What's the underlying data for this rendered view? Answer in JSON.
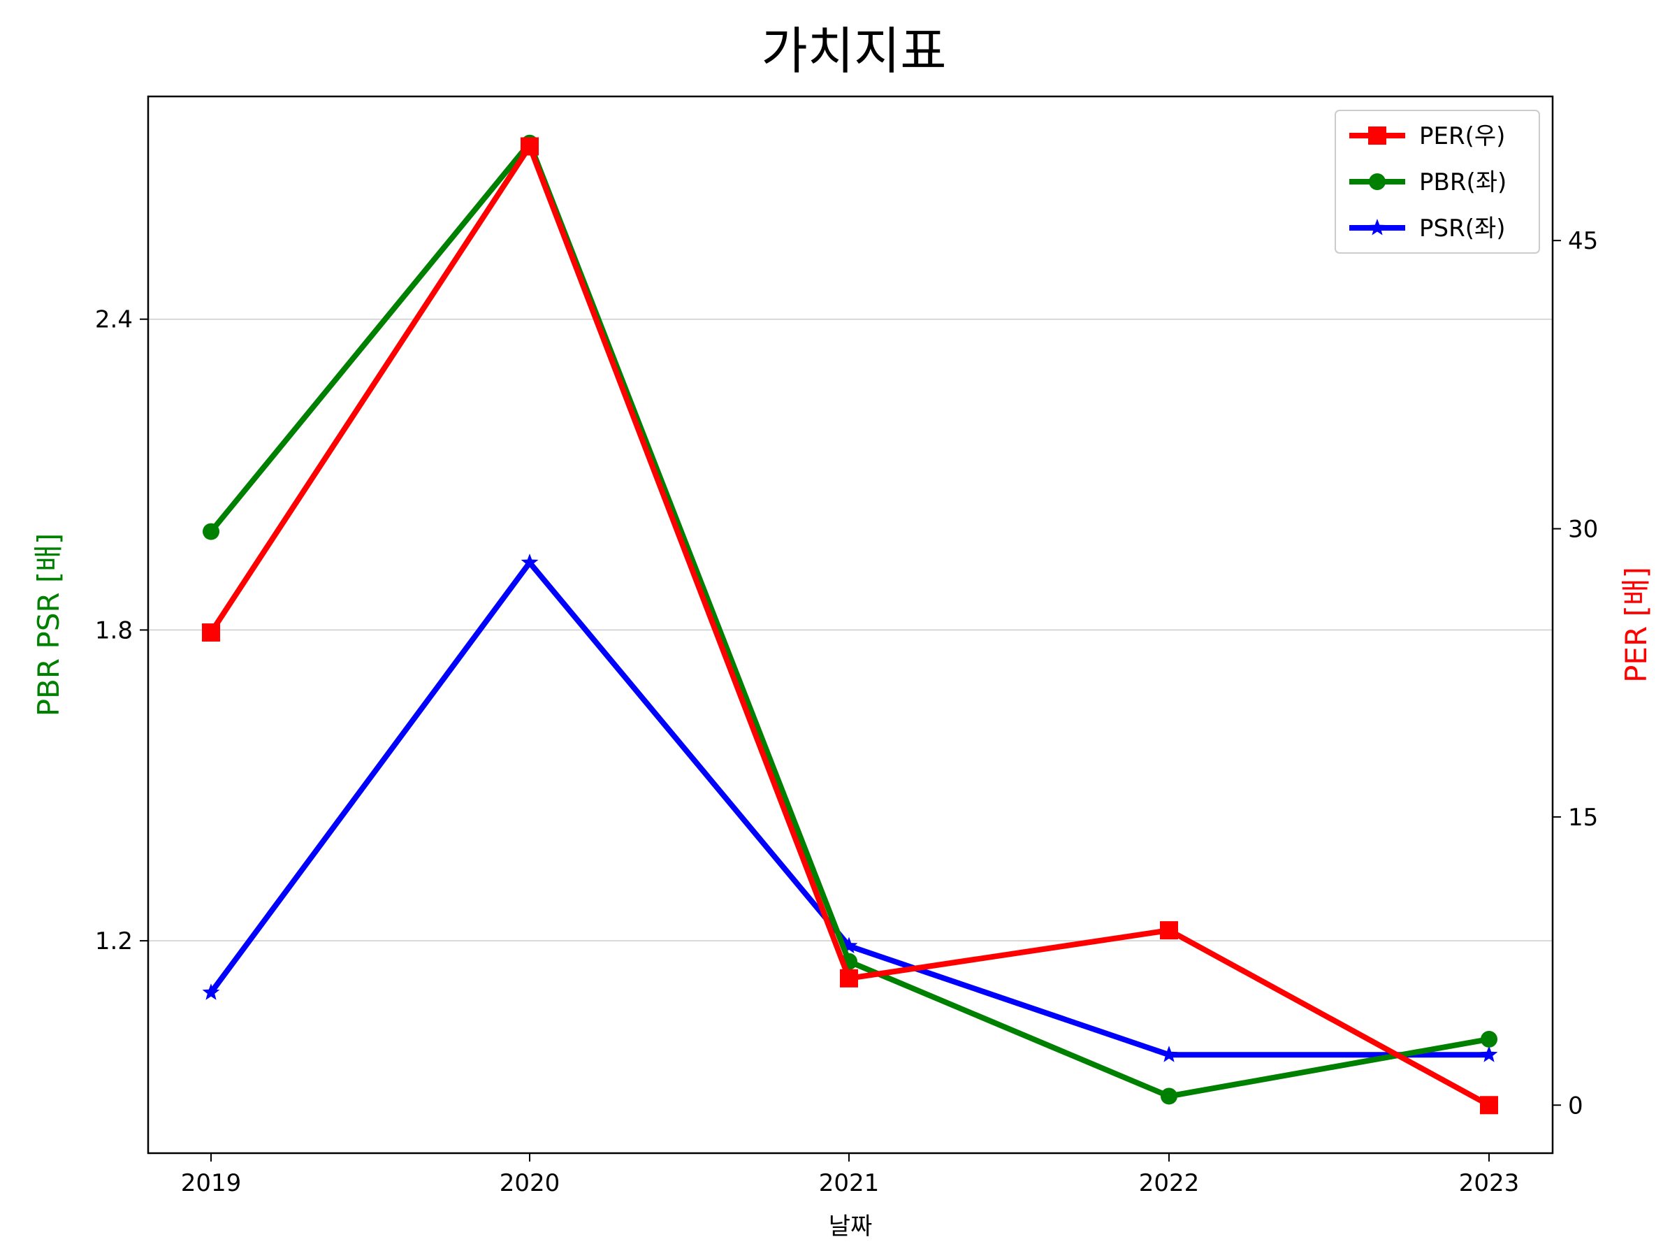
{
  "chart_data": {
    "type": "line",
    "title": "가치지표",
    "xlabel": "날짜",
    "ylabel_left": "PBR PSR [배]",
    "ylabel_right": "PER [배]",
    "x": [
      "2019",
      "2020",
      "2021",
      "2022",
      "2023"
    ],
    "y_left_lim": [
      0.79,
      2.83
    ],
    "y_left_ticks": [
      "1.2",
      "1.8",
      "2.4"
    ],
    "y_right_lim": [
      -2.5,
      52.5
    ],
    "y_right_ticks": [
      "0",
      "15",
      "30",
      "45"
    ],
    "grid": "horizontal, left axis",
    "legend_position": "upper-right",
    "colors": {
      "PER": "#ff0000",
      "PBR": "#008000",
      "PSR": "#0000ff",
      "left_label": "#008000",
      "right_label": "#ff0000"
    },
    "series": [
      {
        "name": "PER(우)",
        "axis": "right",
        "marker": "square",
        "values": [
          24.6,
          49.9,
          6.6,
          9.1,
          0.0
        ]
      },
      {
        "name": "PBR(좌)",
        "axis": "left",
        "marker": "circle",
        "values": [
          1.99,
          2.74,
          1.16,
          0.9,
          1.01
        ]
      },
      {
        "name": "PSR(좌)",
        "axis": "left",
        "marker": "star",
        "values": [
          1.1,
          1.93,
          1.19,
          0.98,
          0.98
        ]
      }
    ]
  }
}
